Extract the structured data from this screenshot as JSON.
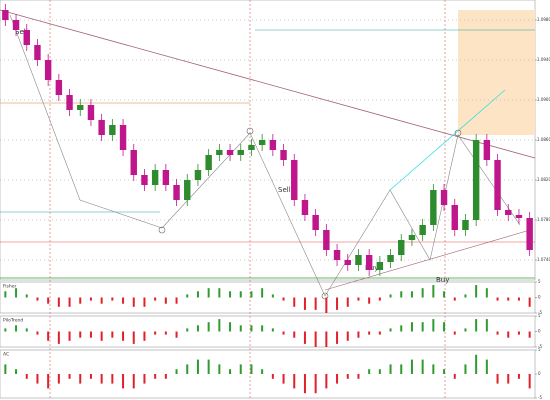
{
  "chart_data": {
    "type": "candlestick",
    "annotations": [
      "Sell",
      "Sell",
      "Buy",
      "Buy"
    ],
    "open": [
      1.099,
      1.098,
      1.097,
      1.0955,
      1.094,
      1.092,
      1.0905,
      1.089,
      1.0895,
      1.088,
      1.0865,
      1.0875,
      1.085,
      1.0825,
      1.0815,
      1.083,
      1.0815,
      1.08,
      1.082,
      1.083,
      1.0845,
      1.085,
      1.0845,
      1.085,
      1.0855,
      1.086,
      1.085,
      1.084,
      1.08,
      1.0785,
      1.077,
      1.075,
      1.074,
      1.0735,
      1.0745,
      1.073,
      1.0738,
      1.0745,
      1.076,
      1.0765,
      1.0775,
      1.081,
      1.0795,
      1.077,
      1.078,
      1.086,
      1.084,
      1.079,
      1.0785,
      1.0782
    ],
    "high": [
      1.0996,
      1.0986,
      1.0976,
      1.0961,
      1.0946,
      1.0926,
      1.0911,
      1.0901,
      1.0901,
      1.0886,
      1.0881,
      1.0881,
      1.0856,
      1.0831,
      1.0836,
      1.0836,
      1.0821,
      1.0826,
      1.0836,
      1.0851,
      1.0856,
      1.0856,
      1.0856,
      1.0861,
      1.0866,
      1.0866,
      1.0856,
      1.0846,
      1.0806,
      1.0791,
      1.0776,
      1.0756,
      1.0746,
      1.0751,
      1.0751,
      1.0744,
      1.0751,
      1.0766,
      1.0771,
      1.0781,
      1.0816,
      1.0816,
      1.0801,
      1.0786,
      1.0866,
      1.0866,
      1.0846,
      1.0796,
      1.0791,
      1.0788
    ],
    "low": [
      1.0974,
      1.0964,
      1.0949,
      1.0934,
      1.0914,
      1.0899,
      1.0884,
      1.0884,
      1.0874,
      1.0859,
      1.0859,
      1.0844,
      1.0819,
      1.0809,
      1.0809,
      1.0809,
      1.0794,
      1.0794,
      1.0814,
      1.0824,
      1.0839,
      1.0839,
      1.0839,
      1.0844,
      1.0849,
      1.0844,
      1.0834,
      1.0794,
      1.0779,
      1.0764,
      1.0744,
      1.0734,
      1.0729,
      1.0729,
      1.0724,
      1.0724,
      1.0732,
      1.0739,
      1.0754,
      1.0759,
      1.0769,
      1.0789,
      1.0764,
      1.0764,
      1.0774,
      1.0834,
      1.0784,
      1.0779,
      1.0776,
      1.0744
    ],
    "close": [
      1.098,
      1.097,
      1.0955,
      1.094,
      1.092,
      1.0905,
      1.089,
      1.0895,
      1.088,
      1.0865,
      1.0875,
      1.085,
      1.0825,
      1.0815,
      1.083,
      1.0815,
      1.08,
      1.082,
      1.083,
      1.0845,
      1.085,
      1.0845,
      1.085,
      1.0855,
      1.086,
      1.085,
      1.084,
      1.08,
      1.0785,
      1.077,
      1.075,
      1.074,
      1.0735,
      1.0745,
      1.073,
      1.0738,
      1.0745,
      1.076,
      1.0765,
      1.0775,
      1.081,
      1.0795,
      1.077,
      1.078,
      1.086,
      1.084,
      1.079,
      1.0785,
      1.0782,
      1.075
    ],
    "up_color": "#2e8b2e",
    "down_color": "#c0168c",
    "ylim": [
      1.072,
      1.1
    ],
    "yticks": [
      {
        "value": 1.074,
        "label": "1.0740"
      },
      {
        "value": 1.078,
        "label": "1.0780"
      },
      {
        "value": 1.082,
        "label": "1.0820"
      },
      {
        "value": 1.086,
        "label": "1.0860"
      },
      {
        "value": 1.09,
        "label": "1.0900"
      },
      {
        "value": 1.094,
        "label": "1.0940"
      },
      {
        "value": 1.098,
        "label": "1.0980"
      }
    ],
    "panes": [
      {
        "name": "Fisher",
        "ylim": [
          -5,
          5
        ],
        "yticks": [
          -5,
          0,
          5
        ],
        "values": [
          2,
          3,
          1,
          -1,
          -2,
          -3,
          -3,
          -2,
          -1,
          -2,
          -1,
          -2,
          -3,
          -3,
          -1,
          -2,
          -2,
          1,
          2,
          3,
          3,
          2,
          2,
          2,
          3,
          1,
          -1,
          -3,
          -4,
          -4,
          -5,
          -4,
          -3,
          -1,
          -2,
          -1,
          1,
          2,
          2,
          3,
          4,
          2,
          -1,
          1,
          4,
          3,
          -1,
          -1,
          -1,
          -3
        ]
      },
      {
        "name": "PiloTrend",
        "ylim": [
          -5,
          5
        ],
        "yticks": [
          -5,
          0,
          5
        ],
        "values": [
          1,
          2,
          1,
          -1,
          -3,
          -4,
          -3,
          -2,
          -2,
          -3,
          -2,
          -3,
          -4,
          -3,
          -1,
          -1,
          -2,
          1,
          2,
          3,
          4,
          3,
          2,
          2,
          2,
          1,
          -1,
          -2,
          -4,
          -5,
          -5,
          -4,
          -3,
          -2,
          -1,
          -1,
          1,
          2,
          3,
          3,
          4,
          3,
          -1,
          1,
          4,
          4,
          -1,
          -2,
          -1,
          -2
        ]
      },
      {
        "name": "AC",
        "ylim": [
          -5,
          5
        ],
        "yticks": [
          -5,
          0,
          5
        ],
        "values": [
          2,
          1,
          -1,
          -2,
          -3,
          -2,
          -1,
          -2,
          -1,
          -2,
          -2,
          -3,
          -3,
          -2,
          -1,
          -1,
          1,
          2,
          3,
          3,
          2,
          1,
          2,
          2,
          1,
          -1,
          -2,
          -3,
          -4,
          -4,
          -3,
          -2,
          -1,
          -1,
          1,
          1,
          2,
          2,
          3,
          3,
          2,
          1,
          -1,
          2,
          4,
          3,
          -2,
          -2,
          -1,
          -3
        ]
      }
    ],
    "pos_color": "#2e9b2e",
    "neg_color": "#e0202a"
  }
}
